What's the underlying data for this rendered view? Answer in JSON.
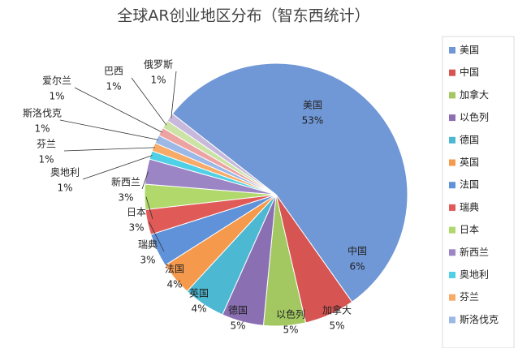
{
  "chart_data": {
    "type": "pie",
    "title": "全球AR创业地区分布（智东西统计）",
    "categories": [
      "美国",
      "中国",
      "加拿大",
      "以色列",
      "德国",
      "英国",
      "法国",
      "瑞典",
      "日本",
      "新西兰",
      "奥地利",
      "芬兰",
      "斯洛伐克",
      "爱尔兰",
      "巴西",
      "俄罗斯"
    ],
    "values": [
      53,
      6,
      5,
      5,
      5,
      4,
      4,
      3,
      3,
      3,
      1,
      1,
      1,
      1,
      1,
      1
    ],
    "value_labels": [
      "53%",
      "6%",
      "5%",
      "5%",
      "5%",
      "4%",
      "4%",
      "3%",
      "3%",
      "3%",
      "1%",
      "1%",
      "1%",
      "1%",
      "1%",
      "1%"
    ],
    "colors": [
      "#7097d6",
      "#d65451",
      "#a3c862",
      "#8b6fb3",
      "#4cb8d1",
      "#f59a4d",
      "#5f92d8",
      "#e05a58",
      "#b0d86a",
      "#9b85c4",
      "#4fd0e6",
      "#f8ab68",
      "#9bb8e6",
      "#eda3a2",
      "#cce3a6",
      "#c7b8dc"
    ],
    "legend": "right"
  }
}
